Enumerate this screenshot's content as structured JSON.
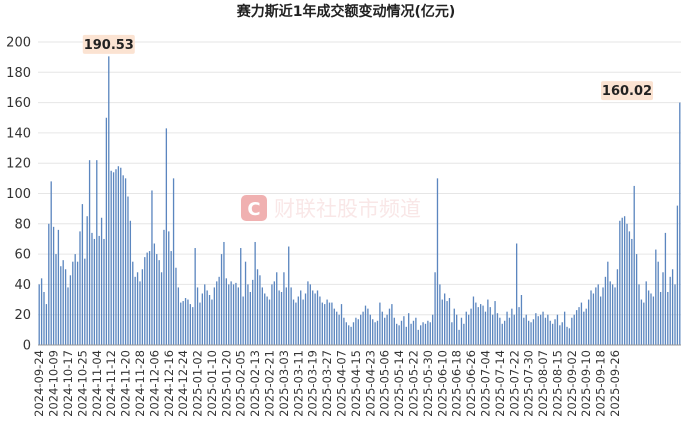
{
  "chart_data": {
    "type": "bar",
    "title": "赛力斯近1年成交额变动情况(亿元)",
    "xlabel": "",
    "ylabel": "",
    "ylim": [
      0,
      200
    ],
    "yticks": [
      0,
      20,
      40,
      60,
      80,
      100,
      120,
      140,
      160,
      180,
      200
    ],
    "grid": true,
    "bar_color": "#5b86bf",
    "x_tick_labels": [
      "2024-09-24",
      "2024-10-09",
      "2024-10-17",
      "2024-10-25",
      "2024-11-04",
      "2024-11-12",
      "2024-11-20",
      "2024-11-28",
      "2024-12-06",
      "2024-12-16",
      "2024-12-24",
      "2025-01-02",
      "2025-01-10",
      "2025-01-20",
      "2025-02-05",
      "2025-02-13",
      "2025-02-21",
      "2025-03-03",
      "2025-03-11",
      "2025-03-19",
      "2025-03-27",
      "2025-04-07",
      "2025-04-15",
      "2025-04-23",
      "2025-05-06",
      "2025-05-14",
      "2025-05-22",
      "2025-05-30",
      "2025-06-10",
      "2025-06-18",
      "2025-06-26",
      "2025-07-04",
      "2025-07-14",
      "2025-07-22",
      "2025-07-30",
      "2025-08-07",
      "2025-08-15",
      "2025-09-02",
      "2025-09-10",
      "2025-09-18",
      "2025-09-26"
    ],
    "tick_every": 6,
    "values": [
      40,
      44,
      35,
      27,
      80,
      108,
      78,
      60,
      76,
      52,
      56,
      50,
      38,
      46,
      55,
      60,
      55,
      75,
      93,
      57,
      85,
      122,
      74,
      70,
      122,
      72,
      84,
      70,
      150,
      190.53,
      115,
      114,
      116,
      118,
      117,
      112,
      110,
      98,
      82,
      55,
      45,
      48,
      42,
      50,
      58,
      61,
      62,
      102,
      67,
      60,
      56,
      48,
      76,
      143,
      75,
      62,
      110,
      51,
      38,
      28,
      29,
      31,
      30,
      27,
      25,
      64,
      38,
      28,
      34,
      40,
      36,
      33,
      30,
      38,
      42,
      45,
      60,
      68,
      44,
      40,
      42,
      40,
      41,
      38,
      64,
      32,
      55,
      40,
      35,
      43,
      68,
      50,
      46,
      38,
      34,
      32,
      30,
      40,
      42,
      48,
      36,
      35,
      48,
      38,
      65,
      38,
      30,
      28,
      32,
      36,
      30,
      34,
      42,
      40,
      36,
      34,
      36,
      32,
      28,
      27,
      30,
      28,
      28,
      24,
      22,
      20,
      27,
      18,
      15,
      13,
      12,
      15,
      18,
      17,
      20,
      22,
      26,
      24,
      20,
      17,
      15,
      16,
      28,
      22,
      18,
      20,
      24,
      27,
      18,
      14,
      13,
      16,
      19,
      12,
      21,
      14,
      16,
      18,
      10,
      13,
      15,
      14,
      16,
      15,
      20,
      48,
      110,
      40,
      30,
      34,
      29,
      31,
      15,
      24,
      20,
      10,
      18,
      14,
      22,
      20,
      24,
      32,
      28,
      25,
      27,
      26,
      22,
      30,
      25,
      20,
      29,
      21,
      18,
      14,
      16,
      22,
      18,
      24,
      20,
      67,
      25,
      33,
      18,
      20,
      16,
      15,
      17,
      21,
      19,
      20,
      22,
      18,
      20,
      16,
      14,
      17,
      20,
      13,
      15,
      22,
      12,
      11,
      18,
      20,
      23,
      25,
      28,
      22,
      24,
      30,
      36,
      34,
      38,
      40,
      32,
      38,
      45,
      55,
      42,
      40,
      38,
      50,
      82,
      84,
      85,
      80,
      75,
      70,
      105,
      60,
      40,
      30,
      28,
      42,
      36,
      34,
      32,
      63,
      55,
      35,
      48,
      74,
      35,
      45,
      50,
      40,
      92,
      160.02
    ],
    "annotations": [
      {
        "label": "190.53",
        "value": 190.53,
        "index": 29
      },
      {
        "label": "160.02",
        "value": 160.02,
        "index": 245
      }
    ]
  },
  "watermark": {
    "icon_letter": "C",
    "text": "财联社股市频道",
    "color": "#e26666"
  }
}
